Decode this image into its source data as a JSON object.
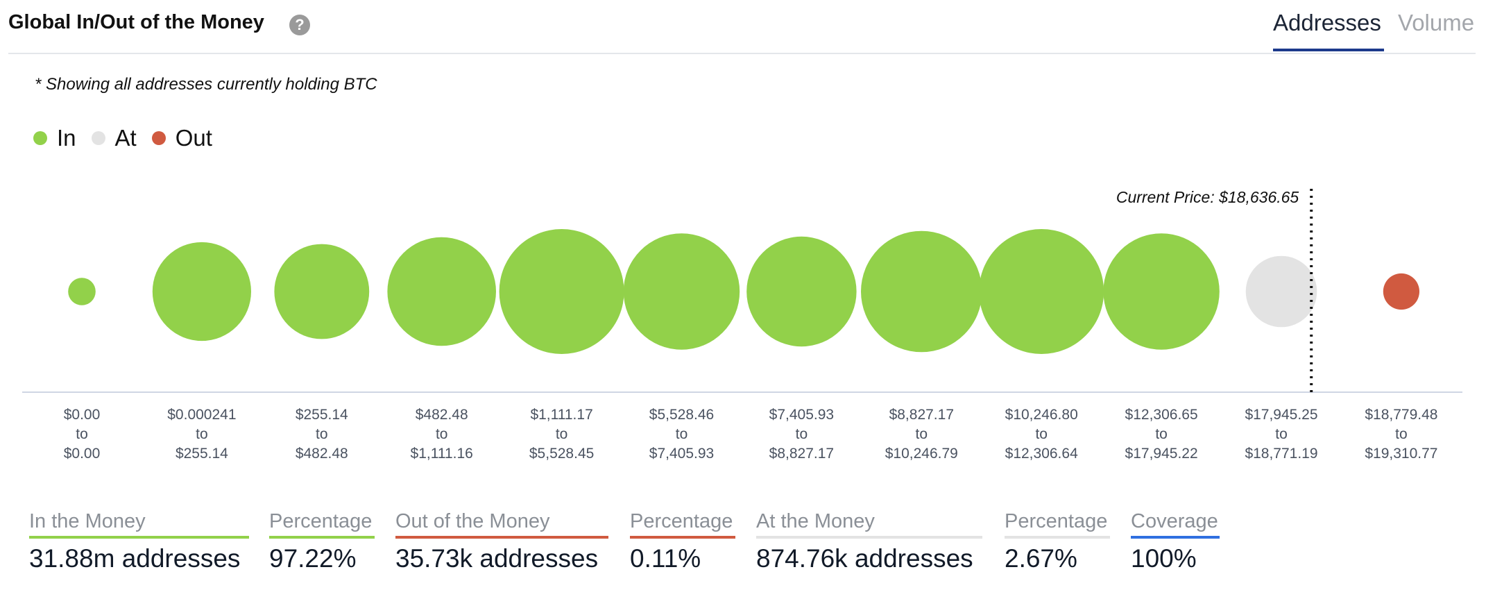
{
  "header": {
    "title": "Global In/Out of the Money",
    "help_icon": "question-circle-icon",
    "tabs": [
      {
        "label": "Addresses",
        "active": true
      },
      {
        "label": "Volume",
        "active": false
      }
    ]
  },
  "note": "* Showing all addresses currently holding BTC",
  "legend": [
    {
      "label": "In",
      "color": "#92d14a"
    },
    {
      "label": "At",
      "color": "#e3e3e3"
    },
    {
      "label": "Out",
      "color": "#d05a40"
    }
  ],
  "chart_data": {
    "type": "bubble",
    "title": "Global In/Out of the Money",
    "current_price_label": "Current Price: $18,636.65",
    "current_price": 18636.65,
    "categories": [
      {
        "from": "$0.00",
        "to_word": "to",
        "to": "$0.00",
        "status": "In",
        "size": 0.22
      },
      {
        "from": "$0.000241",
        "to_word": "to",
        "to": "$255.14",
        "status": "In",
        "size": 0.79
      },
      {
        "from": "$255.14",
        "to_word": "to",
        "to": "$482.48",
        "status": "In",
        "size": 0.76
      },
      {
        "from": "$482.48",
        "to_word": "to",
        "to": "$1,111.16",
        "status": "In",
        "size": 0.87
      },
      {
        "from": "$1,111.17",
        "to_word": "to",
        "to": "$5,528.45",
        "status": "In",
        "size": 1.0
      },
      {
        "from": "$5,528.46",
        "to_word": "to",
        "to": "$7,405.93",
        "status": "In",
        "size": 0.93
      },
      {
        "from": "$7,405.93",
        "to_word": "to",
        "to": "$8,827.17",
        "status": "In",
        "size": 0.88
      },
      {
        "from": "$8,827.17",
        "to_word": "to",
        "to": "$10,246.79",
        "status": "In",
        "size": 0.97
      },
      {
        "from": "$10,246.80",
        "to_word": "to",
        "to": "$12,306.64",
        "status": "In",
        "size": 1.0
      },
      {
        "from": "$12,306.65",
        "to_word": "to",
        "to": "$17,945.22",
        "status": "In",
        "size": 0.93
      },
      {
        "from": "$17,945.25",
        "to_word": "to",
        "to": "$18,771.19",
        "status": "At",
        "size": 0.57
      },
      {
        "from": "$18,779.48",
        "to_word": "to",
        "to": "$19,310.77",
        "status": "Out",
        "size": 0.29
      }
    ]
  },
  "stats": [
    {
      "label": "In the Money",
      "value": "31.88m addresses",
      "color": "#92d14a"
    },
    {
      "label": "Percentage",
      "value": "97.22%",
      "color": "#92d14a"
    },
    {
      "label": "Out of the Money",
      "value": "35.73k addresses",
      "color": "#d05a40"
    },
    {
      "label": "Percentage",
      "value": "0.11%",
      "color": "#d05a40"
    },
    {
      "label": "At the Money",
      "value": "874.76k addresses",
      "color": "#e3e3e3"
    },
    {
      "label": "Percentage",
      "value": "2.67%",
      "color": "#e3e3e3"
    },
    {
      "label": "Coverage",
      "value": "100%",
      "color": "#2f6fe0"
    }
  ]
}
